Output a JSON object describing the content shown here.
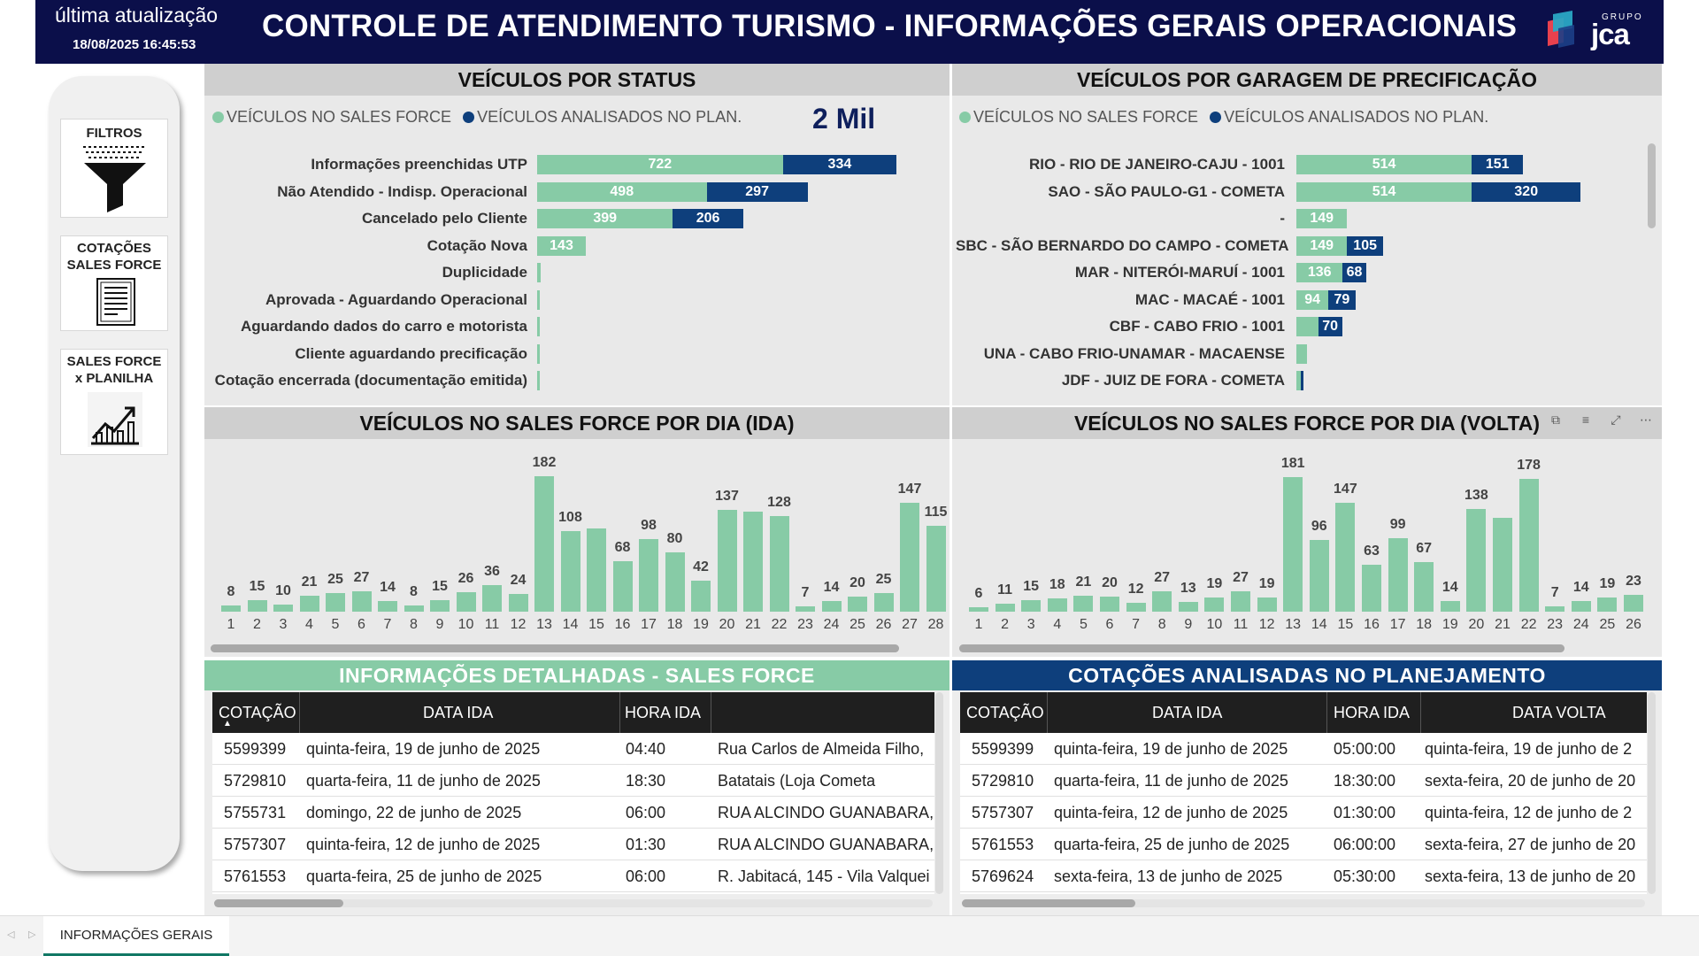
{
  "header": {
    "update_label": "última atualização",
    "update_time": "18/08/2025 16:45:53",
    "title": "CONTROLE DE ATENDIMENTO TURISMO - INFORMAÇÕES GERAIS OPERACIONAIS",
    "logo_small": "GRUPO",
    "logo_big": "jca"
  },
  "sidebar": {
    "filters_label": "FILTROS",
    "quotes_label_1": "COTAÇÕES",
    "quotes_label_2": "SALES FORCE",
    "compare_label_1": "SALES FORCE",
    "compare_label_2": "x PLANILHA"
  },
  "colors": {
    "green": "#87cba6",
    "navy": "#0e3f7c",
    "header": "#0b0f4a"
  },
  "status_panel": {
    "title": "VEÍCULOS POR STATUS",
    "legend_green": "VEÍCULOS NO SALES FORCE",
    "legend_navy": "VEÍCULOS ANALISADOS NO PLAN.",
    "axis_max_label": "2 Mil"
  },
  "garage_panel": {
    "title": "VEÍCULOS POR GARAGEM DE PRECIFICAÇÃO",
    "legend_green": "VEÍCULOS NO SALES FORCE",
    "legend_navy": "VEÍCULOS ANALISADOS NO PLAN."
  },
  "ida_panel": {
    "title": "VEÍCULOS NO SALES FORCE POR DIA (IDA)"
  },
  "volta_panel": {
    "title": "VEÍCULOS NO SALES FORCE POR DIA (VOLTA)"
  },
  "chart_data": [
    {
      "type": "bar",
      "orientation": "horizontal",
      "stacked": true,
      "title": "VEÍCULOS POR STATUS",
      "categories": [
        "Informações preenchidas UTP",
        "Não Atendido - Indisp. Operacional",
        "Cancelado pelo Cliente",
        "Cotação Nova",
        "Duplicidade",
        "Aprovada - Aguardando Operacional",
        "Aguardando dados do carro e motorista",
        "Cliente aguardando precificação",
        "Cotação encerrada (documentação emitida)"
      ],
      "series": [
        {
          "name": "VEÍCULOS NO SALES FORCE",
          "values": [
            722,
            498,
            399,
            143,
            10,
            3,
            3,
            1,
            1
          ]
        },
        {
          "name": "VEÍCULOS ANALISADOS NO PLAN.",
          "values": [
            334,
            297,
            206,
            0,
            0,
            0,
            0,
            0,
            0
          ]
        }
      ],
      "xlim": [
        0,
        1200
      ]
    },
    {
      "type": "bar",
      "orientation": "horizontal",
      "stacked": true,
      "title": "VEÍCULOS POR GARAGEM DE PRECIFICAÇÃO",
      "categories": [
        "RIO - RIO DE JANEIRO-CAJU - 1001",
        "SAO - SÃO PAULO-G1 - COMETA",
        "-",
        "SBC - SÃO BERNARDO DO CAMPO - COMETA",
        "MAR - NITERÓI-MARUÍ - 1001",
        "MAC - MACAÉ - 1001",
        "CBF - CABO FRIO - 1001",
        "UNA - CABO FRIO-UNAMAR - MACAENSE",
        "JDF - JUIZ DE FORA - COMETA"
      ],
      "series": [
        {
          "name": "VEÍCULOS NO SALES FORCE",
          "values": [
            514,
            514,
            149,
            149,
            136,
            94,
            64,
            30,
            12
          ]
        },
        {
          "name": "VEÍCULOS ANALISADOS NO PLAN.",
          "values": [
            151,
            320,
            0,
            105,
            68,
            79,
            70,
            0,
            5
          ]
        }
      ],
      "xlim": [
        0,
        1100
      ]
    },
    {
      "type": "bar",
      "title": "VEÍCULOS NO SALES FORCE POR DIA (IDA)",
      "categories": [
        "1",
        "2",
        "3",
        "4",
        "5",
        "6",
        "7",
        "8",
        "9",
        "10",
        "11",
        "12",
        "13",
        "14",
        "15",
        "16",
        "17",
        "18",
        "19",
        "20",
        "21",
        "22",
        "23",
        "24",
        "25",
        "26",
        "27",
        "28"
      ],
      "values": [
        8,
        15,
        10,
        21,
        25,
        27,
        14,
        8,
        15,
        26,
        36,
        24,
        182,
        108,
        112,
        68,
        98,
        80,
        42,
        137,
        134,
        128,
        7,
        14,
        20,
        25,
        147,
        115
      ],
      "labels": [
        "8",
        "15",
        "10",
        "21",
        "25",
        "27",
        "14",
        "8",
        "15",
        "26",
        "36",
        "24",
        "182",
        "108",
        "",
        "68",
        "98",
        "80",
        "42",
        "137",
        "",
        "128",
        "7",
        "14",
        "20",
        "25",
        "147",
        "115"
      ],
      "ylim": [
        0,
        200
      ]
    },
    {
      "type": "bar",
      "title": "VEÍCULOS NO SALES FORCE POR DIA (VOLTA)",
      "categories": [
        "1",
        "2",
        "3",
        "4",
        "5",
        "6",
        "7",
        "8",
        "9",
        "10",
        "11",
        "12",
        "13",
        "14",
        "15",
        "16",
        "17",
        "18",
        "19",
        "20",
        "21",
        "22",
        "23",
        "24",
        "25",
        "26"
      ],
      "values": [
        6,
        11,
        15,
        18,
        21,
        20,
        12,
        27,
        13,
        19,
        27,
        19,
        181,
        96,
        147,
        63,
        99,
        67,
        14,
        138,
        126,
        178,
        7,
        14,
        19,
        23
      ],
      "labels": [
        "6",
        "11",
        "15",
        "18",
        "21",
        "20",
        "12",
        "27",
        "13",
        "19",
        "27",
        "19",
        "181",
        "96",
        "147",
        "63",
        "99",
        "67",
        "14",
        "138",
        "",
        "178",
        "7",
        "14",
        "19",
        "23"
      ],
      "ylim": [
        0,
        200
      ]
    }
  ],
  "sf_table": {
    "title": "INFORMAÇÕES DETALHADAS - SALES FORCE",
    "headers": {
      "c1": "COTAÇÃO",
      "c2": "DATA IDA",
      "c3": "HORA IDA",
      "c4": ""
    },
    "rows": [
      {
        "c1": "5599399",
        "c2": "quinta-feira, 19 de junho de 2025",
        "c3": "04:40",
        "c4": "Rua Carlos de Almeida Filho,"
      },
      {
        "c1": "5729810",
        "c2": "quarta-feira, 11 de junho de 2025",
        "c3": "18:30",
        "c4": "Batatais (Loja Cometa"
      },
      {
        "c1": "5755731",
        "c2": "domingo, 22 de junho de 2025",
        "c3": "06:00",
        "c4": "RUA ALCINDO GUANABARA,"
      },
      {
        "c1": "5757307",
        "c2": "quinta-feira, 12 de junho de 2025",
        "c3": "01:30",
        "c4": "RUA ALCINDO GUANABARA,"
      },
      {
        "c1": "5761553",
        "c2": "quarta-feira, 25 de junho de 2025",
        "c3": "06:00",
        "c4": "R. Jabitacá, 145 - Vila Valquei"
      }
    ]
  },
  "plan_table": {
    "title": "COTAÇÕES ANALISADAS NO PLANEJAMENTO",
    "headers": {
      "c1": "COTAÇÃO",
      "c2": "DATA IDA",
      "c3": "HORA IDA",
      "c4": "DATA VOLTA"
    },
    "rows": [
      {
        "c1": "5599399",
        "c2": "quinta-feira, 19 de junho de 2025",
        "c3": "05:00:00",
        "c4": "quinta-feira, 19 de junho de 2"
      },
      {
        "c1": "5729810",
        "c2": "quarta-feira, 11 de junho de 2025",
        "c3": "18:30:00",
        "c4": "sexta-feira, 20 de junho de 20"
      },
      {
        "c1": "5757307",
        "c2": "quinta-feira, 12 de junho de 2025",
        "c3": "01:30:00",
        "c4": "quinta-feira, 12 de junho de 2"
      },
      {
        "c1": "5761553",
        "c2": "quarta-feira, 25 de junho de 2025",
        "c3": "06:00:00",
        "c4": "sexta-feira, 27 de junho de 20"
      },
      {
        "c1": "5769624",
        "c2": "sexta-feira, 13 de junho de 2025",
        "c3": "05:30:00",
        "c4": "sexta-feira, 13 de junho de 20"
      }
    ]
  },
  "visual_icons": [
    "copy-icon",
    "filter-icon",
    "focus-mode-icon",
    "more-options-icon"
  ],
  "tabbar": {
    "tab_label": "INFORMAÇÕES GERAIS"
  }
}
